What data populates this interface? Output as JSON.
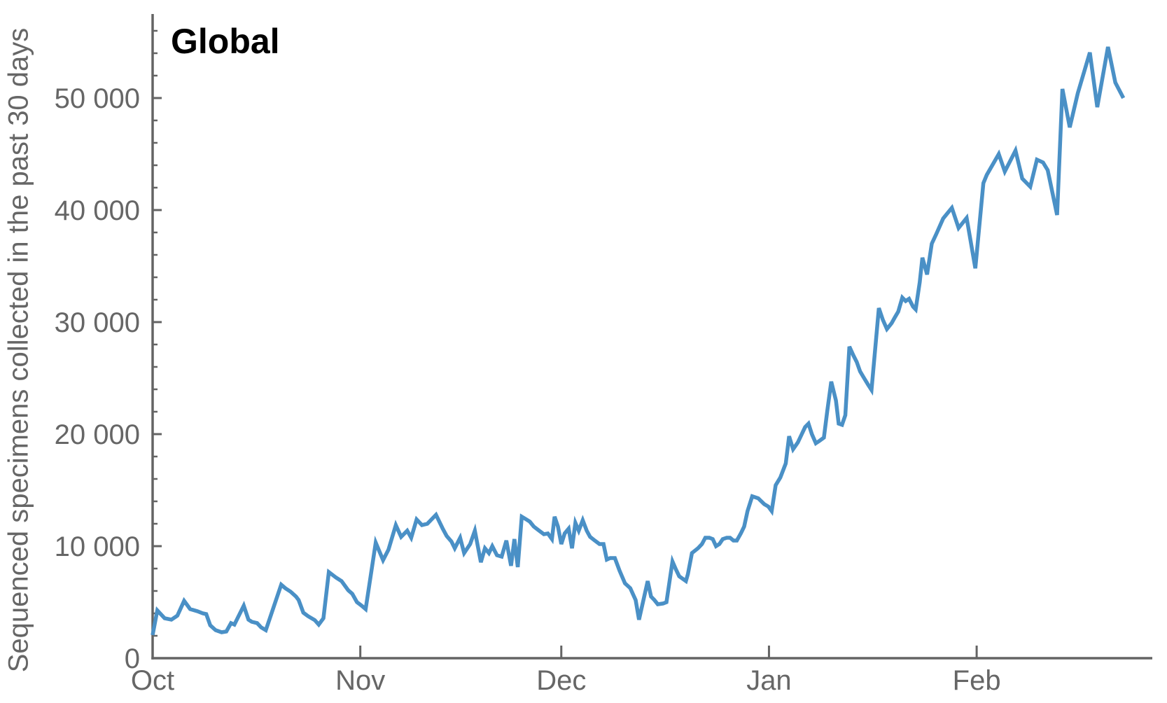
{
  "title": "Global",
  "y_axis": {
    "label": "Sequenced specimens collected in the past 30 days",
    "ticks": [
      {
        "value": 0,
        "label": "0"
      },
      {
        "value": 10000,
        "label": "10 000"
      },
      {
        "value": 20000,
        "label": "20 000"
      },
      {
        "value": 30000,
        "label": "30 000"
      },
      {
        "value": 40000,
        "label": "40 000"
      },
      {
        "value": 50000,
        "label": "50 000"
      }
    ],
    "minor_tick_step": 2000,
    "minor_tick_max": 56000
  },
  "x_axis": {
    "ticks": [
      {
        "day": 0,
        "label": "Oct"
      },
      {
        "day": 31,
        "label": "Nov"
      },
      {
        "day": 61,
        "label": "Dec"
      },
      {
        "day": 92,
        "label": "Jan"
      },
      {
        "day": 123,
        "label": "Feb"
      }
    ]
  },
  "colors": {
    "line": "#4a90c6",
    "axis": "#646464",
    "text": "#666666",
    "title": "#000000"
  },
  "chart_data": {
    "type": "line",
    "title": "Global",
    "xlabel": "",
    "ylabel": "Sequenced specimens collected in the past 30 days",
    "x_unit": "days since Oct 1",
    "xlim_days": [
      0,
      149.2
    ],
    "ylim": [
      0,
      57500
    ],
    "grid": false,
    "legend": "none",
    "x_tick_labels": [
      "Oct",
      "Nov",
      "Dec",
      "Jan",
      "Feb"
    ],
    "y_tick_values": [
      0,
      10000,
      20000,
      30000,
      40000,
      50000
    ],
    "series": [
      {
        "name": "Global",
        "points": [
          [
            0,
            2060
          ],
          [
            0.7,
            4270
          ],
          [
            1.8,
            3560
          ],
          [
            2.8,
            3440
          ],
          [
            3.7,
            3800
          ],
          [
            4.7,
            5120
          ],
          [
            5.6,
            4380
          ],
          [
            6.7,
            4190
          ],
          [
            7.5,
            4000
          ],
          [
            8.0,
            3940
          ],
          [
            8.6,
            2940
          ],
          [
            9.4,
            2500
          ],
          [
            10.3,
            2310
          ],
          [
            11.0,
            2380
          ],
          [
            11.7,
            3130
          ],
          [
            12.2,
            3000
          ],
          [
            13.6,
            4690
          ],
          [
            14.3,
            3440
          ],
          [
            14.8,
            3250
          ],
          [
            15.6,
            3130
          ],
          [
            16.2,
            2750
          ],
          [
            16.9,
            2500
          ],
          [
            19.2,
            6560
          ],
          [
            19.8,
            6250
          ],
          [
            20.6,
            5940
          ],
          [
            21.4,
            5500
          ],
          [
            21.8,
            5190
          ],
          [
            22.5,
            4060
          ],
          [
            23.2,
            3750
          ],
          [
            24.2,
            3400
          ],
          [
            24.8,
            3000
          ],
          [
            25.5,
            3560
          ],
          [
            26.3,
            7690
          ],
          [
            27.4,
            7190
          ],
          [
            28.2,
            6880
          ],
          [
            29.2,
            6060
          ],
          [
            29.8,
            5750
          ],
          [
            30.5,
            5000
          ],
          [
            31.2,
            4690
          ],
          [
            31.8,
            4380
          ],
          [
            33.3,
            10310
          ],
          [
            34.4,
            8750
          ],
          [
            35.2,
            9690
          ],
          [
            36.3,
            11880
          ],
          [
            37.1,
            10830
          ],
          [
            38.0,
            11380
          ],
          [
            38.6,
            10750
          ],
          [
            39.4,
            12380
          ],
          [
            40.2,
            11880
          ],
          [
            41.0,
            12000
          ],
          [
            42.3,
            12800
          ],
          [
            43.3,
            11560
          ],
          [
            43.9,
            10900
          ],
          [
            44.6,
            10420
          ],
          [
            45.1,
            9810
          ],
          [
            45.9,
            10750
          ],
          [
            46.5,
            9380
          ],
          [
            47.4,
            10190
          ],
          [
            48.1,
            11380
          ],
          [
            49.0,
            8560
          ],
          [
            49.6,
            9810
          ],
          [
            50.2,
            9380
          ],
          [
            50.7,
            10000
          ],
          [
            51.4,
            9190
          ],
          [
            52.1,
            9060
          ],
          [
            52.8,
            10500
          ],
          [
            53.5,
            8250
          ],
          [
            54.0,
            10630
          ],
          [
            54.5,
            8130
          ],
          [
            55.1,
            12630
          ],
          [
            55.8,
            12380
          ],
          [
            56.3,
            12190
          ],
          [
            56.9,
            11750
          ],
          [
            57.7,
            11380
          ],
          [
            58.4,
            11060
          ],
          [
            59.0,
            11130
          ],
          [
            59.6,
            10630
          ],
          [
            60.0,
            12630
          ],
          [
            60.5,
            11750
          ],
          [
            61.0,
            10190
          ],
          [
            61.5,
            11130
          ],
          [
            62.1,
            11560
          ],
          [
            62.6,
            9810
          ],
          [
            63.1,
            12080
          ],
          [
            63.6,
            11380
          ],
          [
            64.2,
            12310
          ],
          [
            64.8,
            11380
          ],
          [
            65.3,
            10830
          ],
          [
            66.0,
            10500
          ],
          [
            66.7,
            10190
          ],
          [
            67.3,
            10190
          ],
          [
            67.8,
            8800
          ],
          [
            68.3,
            8940
          ],
          [
            69.0,
            8940
          ],
          [
            69.7,
            7810
          ],
          [
            70.5,
            6690
          ],
          [
            71.3,
            6250
          ],
          [
            72.1,
            5190
          ],
          [
            72.6,
            3440
          ],
          [
            73.9,
            6880
          ],
          [
            74.4,
            5500
          ],
          [
            74.9,
            5190
          ],
          [
            75.4,
            4810
          ],
          [
            76.2,
            4880
          ],
          [
            76.7,
            5000
          ],
          [
            77.6,
            8630
          ],
          [
            78.1,
            7940
          ],
          [
            78.6,
            7310
          ],
          [
            79.6,
            6880
          ],
          [
            79.9,
            7500
          ],
          [
            80.5,
            9380
          ],
          [
            81.4,
            9810
          ],
          [
            82.0,
            10190
          ],
          [
            82.5,
            10750
          ],
          [
            83.1,
            10750
          ],
          [
            83.6,
            10630
          ],
          [
            84.1,
            10000
          ],
          [
            84.6,
            10190
          ],
          [
            85.1,
            10630
          ],
          [
            85.7,
            10750
          ],
          [
            86.2,
            10750
          ],
          [
            86.7,
            10500
          ],
          [
            87.2,
            10500
          ],
          [
            87.8,
            11130
          ],
          [
            88.3,
            11750
          ],
          [
            88.8,
            13130
          ],
          [
            89.5,
            14450
          ],
          [
            90.4,
            14270
          ],
          [
            91.3,
            13750
          ],
          [
            91.9,
            13540
          ],
          [
            92.4,
            13130
          ],
          [
            93.0,
            15440
          ],
          [
            93.7,
            16130
          ],
          [
            94.5,
            17380
          ],
          [
            95.0,
            19810
          ],
          [
            95.6,
            18650
          ],
          [
            96.3,
            19250
          ],
          [
            96.9,
            20000
          ],
          [
            97.4,
            20630
          ],
          [
            97.9,
            20940
          ],
          [
            98.4,
            20000
          ],
          [
            99.0,
            19190
          ],
          [
            99.5,
            19380
          ],
          [
            100.2,
            19690
          ],
          [
            100.7,
            22060
          ],
          [
            101.3,
            24690
          ],
          [
            102.0,
            23000
          ],
          [
            102.4,
            20940
          ],
          [
            102.9,
            20830
          ],
          [
            103.4,
            21690
          ],
          [
            104.0,
            27810
          ],
          [
            104.6,
            27030
          ],
          [
            105.1,
            26440
          ],
          [
            105.6,
            25600
          ],
          [
            106.2,
            25000
          ],
          [
            106.8,
            24400
          ],
          [
            107.3,
            23940
          ],
          [
            108.4,
            31250
          ],
          [
            109.0,
            30200
          ],
          [
            109.6,
            29380
          ],
          [
            110.3,
            29900
          ],
          [
            110.8,
            30440
          ],
          [
            111.3,
            30940
          ],
          [
            111.9,
            32190
          ],
          [
            112.4,
            31880
          ],
          [
            112.9,
            32080
          ],
          [
            113.5,
            31380
          ],
          [
            113.9,
            31130
          ],
          [
            114.5,
            33560
          ],
          [
            114.9,
            35750
          ],
          [
            115.6,
            34250
          ],
          [
            116.3,
            37000
          ],
          [
            117.0,
            37900
          ],
          [
            118.0,
            39250
          ],
          [
            119.3,
            40200
          ],
          [
            120.3,
            38400
          ],
          [
            121.5,
            39300
          ],
          [
            122.8,
            34800
          ],
          [
            124.0,
            42400
          ],
          [
            124.5,
            43130
          ],
          [
            126.3,
            45000
          ],
          [
            127.2,
            43440
          ],
          [
            128.8,
            45310
          ],
          [
            129.8,
            42810
          ],
          [
            131.0,
            42080
          ],
          [
            132.0,
            44500
          ],
          [
            132.9,
            44250
          ],
          [
            133.6,
            43560
          ],
          [
            135.0,
            39560
          ],
          [
            135.8,
            50810
          ],
          [
            136.9,
            47380
          ],
          [
            138.1,
            50440
          ],
          [
            139.9,
            54060
          ],
          [
            141.0,
            49190
          ],
          [
            142.6,
            54560
          ],
          [
            143.7,
            51380
          ],
          [
            144.9,
            50000
          ]
        ]
      }
    ]
  }
}
